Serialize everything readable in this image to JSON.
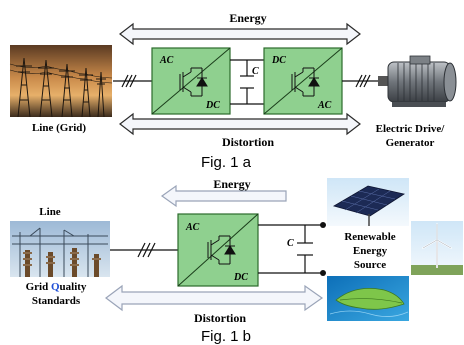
{
  "fig_a": {
    "energy_label": "Energy",
    "distortion_label": "Distortion",
    "converter1_top": "AC",
    "converter1_bottom": "DC",
    "capacitor_label": "C",
    "converter2_top": "DC",
    "converter2_bottom": "AC",
    "left_caption": "Line (Grid)",
    "right_caption_line1": "Electric Drive/",
    "right_caption_line2": "Generator",
    "caption": "Fig. 1 a"
  },
  "fig_b": {
    "energy_label": "Energy",
    "distortion_label": "Distortion",
    "converter_top": "AC",
    "converter_bottom": "DC",
    "capacitor_label": "C",
    "left_title": "Line",
    "left_caption_line1_pre": "Grid ",
    "left_caption_line1_q": "Q",
    "left_caption_line1_post": "uality",
    "left_caption_line2": "Standards",
    "right_caption_line1": "Renewable",
    "right_caption_line2": "Energy",
    "right_caption_line3": "Source",
    "caption": "Fig. 1 b"
  },
  "colors": {
    "converter_fill": "#8fd08f",
    "converter_stroke": "#2c6b2c",
    "arrow_fill": "#f4f6fb",
    "arrow_stroke": "#2a2a2a",
    "grid_q_color": "#1f4fd6"
  }
}
